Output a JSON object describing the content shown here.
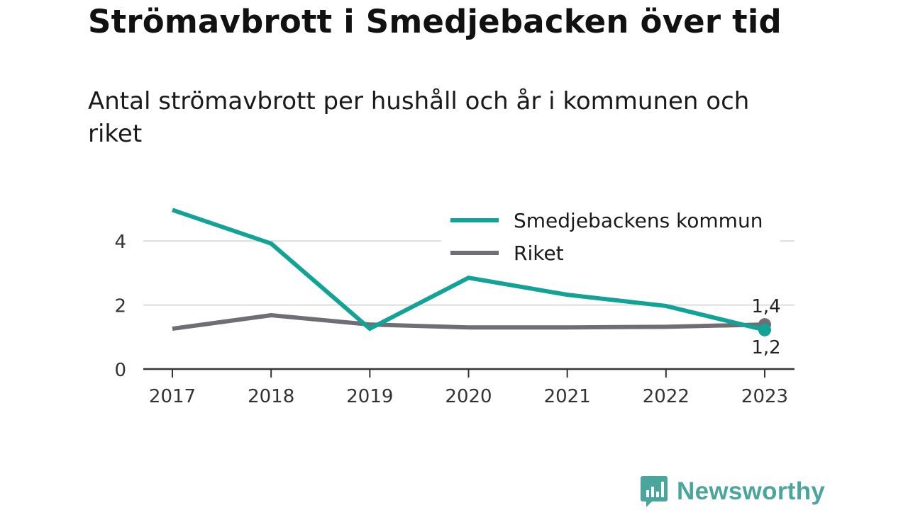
{
  "header": {
    "title": "Strömavbrott i Smedjebacken över tid",
    "subtitle": "Antal strömavbrott per hushåll och år i kommunen och riket"
  },
  "chart_data": {
    "type": "line",
    "title": "Strömavbrott i Smedjebacken över tid",
    "subtitle": "Antal strömavbrott per hushåll och år i kommunen och riket",
    "xlabel": "",
    "ylabel": "",
    "x": [
      2017,
      2018,
      2019,
      2020,
      2021,
      2022,
      2023
    ],
    "x_tick_labels": [
      "2017",
      "2018",
      "2019",
      "2020",
      "2021",
      "2022",
      "2023"
    ],
    "y_ticks": [
      0,
      2,
      4
    ],
    "y_tick_labels": [
      "0",
      "2",
      "4"
    ],
    "ylim": [
      0,
      5.2
    ],
    "grid": true,
    "legend_position": "top-right",
    "series": [
      {
        "name": "Smedjebackens kommun",
        "color": "#13a396",
        "values": [
          4.97,
          3.92,
          1.26,
          2.85,
          2.32,
          1.97,
          1.22
        ],
        "end_label": "1,2"
      },
      {
        "name": "Riket",
        "color": "#6f6e75",
        "values": [
          1.26,
          1.68,
          1.39,
          1.3,
          1.3,
          1.32,
          1.39
        ],
        "end_label": "1,4"
      }
    ]
  },
  "brand": {
    "name": "Newsworthy",
    "color": "#4aa69c",
    "icon": "bar-chart-speech-bubble-icon"
  }
}
